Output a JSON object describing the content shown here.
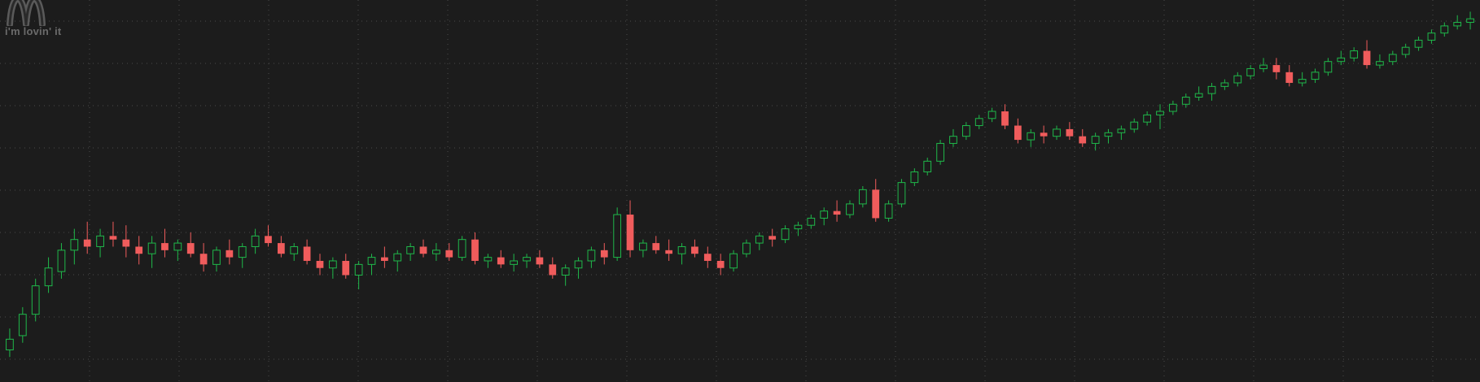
{
  "logo": {
    "tagline": "i'm lovin' it",
    "icon": "golden-arches-icon"
  },
  "colors": {
    "background": "#1c1c1c",
    "grid": "#4a4a4a",
    "up": "#1fb84a",
    "down": "#f05c5c",
    "logo": "#5a5a5a"
  },
  "chart_data": {
    "type": "candlestick",
    "title": "",
    "xlabel": "",
    "ylabel": "",
    "grid": true,
    "ylim": [
      0,
      100
    ],
    "series": [
      {
        "values": [
          [
            4,
            10,
            2,
            7
          ],
          [
            8,
            16,
            6,
            14
          ],
          [
            14,
            24,
            12,
            22
          ],
          [
            22,
            30,
            20,
            27
          ],
          [
            26,
            34,
            24,
            32
          ],
          [
            32,
            38,
            28,
            35
          ],
          [
            35,
            40,
            31,
            33
          ],
          [
            33,
            38,
            30,
            36
          ],
          [
            36,
            40,
            33,
            35
          ],
          [
            35,
            39,
            30,
            33
          ],
          [
            33,
            36,
            28,
            31
          ],
          [
            31,
            36,
            27,
            34
          ],
          [
            34,
            38,
            30,
            32
          ],
          [
            32,
            35,
            29,
            34
          ],
          [
            34,
            37,
            30,
            31
          ],
          [
            31,
            34,
            26,
            28
          ],
          [
            28,
            33,
            26,
            32
          ],
          [
            32,
            35,
            28,
            30
          ],
          [
            30,
            34,
            27,
            33
          ],
          [
            33,
            38,
            31,
            36
          ],
          [
            36,
            39,
            33,
            34
          ],
          [
            34,
            36,
            30,
            31
          ],
          [
            31,
            34,
            29,
            33
          ],
          [
            33,
            35,
            28,
            29
          ],
          [
            29,
            31,
            25,
            27
          ],
          [
            27,
            30,
            24,
            29
          ],
          [
            29,
            31,
            24,
            25
          ],
          [
            25,
            29,
            21,
            28
          ],
          [
            28,
            31,
            25,
            30
          ],
          [
            30,
            33,
            27,
            29
          ],
          [
            29,
            32,
            26,
            31
          ],
          [
            31,
            34,
            29,
            33
          ],
          [
            33,
            35,
            30,
            31
          ],
          [
            31,
            34,
            29,
            32
          ],
          [
            32,
            34,
            29,
            30
          ],
          [
            30,
            36,
            29,
            35
          ],
          [
            35,
            37,
            28,
            29
          ],
          [
            29,
            31,
            27,
            30
          ],
          [
            30,
            32,
            27,
            28
          ],
          [
            28,
            31,
            26,
            29
          ],
          [
            29,
            31,
            27,
            30
          ],
          [
            30,
            32,
            27,
            28
          ],
          [
            28,
            30,
            24,
            25
          ],
          [
            25,
            28,
            22,
            27
          ],
          [
            27,
            30,
            24,
            29
          ],
          [
            29,
            33,
            27,
            32
          ],
          [
            32,
            34,
            28,
            30
          ],
          [
            30,
            44,
            29,
            42
          ],
          [
            42,
            46,
            30,
            32
          ],
          [
            32,
            35,
            30,
            34
          ],
          [
            34,
            36,
            31,
            32
          ],
          [
            32,
            35,
            29,
            31
          ],
          [
            31,
            34,
            28,
            33
          ],
          [
            33,
            35,
            30,
            31
          ],
          [
            31,
            33,
            27,
            29
          ],
          [
            29,
            31,
            25,
            27
          ],
          [
            27,
            32,
            26,
            31
          ],
          [
            31,
            35,
            30,
            34
          ],
          [
            34,
            37,
            32,
            36
          ],
          [
            36,
            38,
            33,
            35
          ],
          [
            35,
            39,
            34,
            38
          ],
          [
            38,
            40,
            36,
            39
          ],
          [
            39,
            42,
            38,
            41
          ],
          [
            41,
            44,
            39,
            43
          ],
          [
            43,
            46,
            40,
            42
          ],
          [
            42,
            46,
            41,
            45
          ],
          [
            45,
            50,
            44,
            49
          ],
          [
            49,
            52,
            40,
            41
          ],
          [
            41,
            46,
            40,
            45
          ],
          [
            45,
            52,
            44,
            51
          ],
          [
            51,
            55,
            50,
            54
          ],
          [
            54,
            58,
            53,
            57
          ],
          [
            57,
            63,
            56,
            62
          ],
          [
            62,
            66,
            61,
            64
          ],
          [
            64,
            68,
            63,
            67
          ],
          [
            67,
            70,
            66,
            69
          ],
          [
            69,
            72,
            68,
            71
          ],
          [
            71,
            73,
            66,
            67
          ],
          [
            67,
            69,
            62,
            63
          ],
          [
            63,
            66,
            61,
            65
          ],
          [
            65,
            67,
            62,
            64
          ],
          [
            64,
            67,
            63,
            66
          ],
          [
            66,
            68,
            63,
            64
          ],
          [
            64,
            66,
            61,
            62
          ],
          [
            62,
            65,
            60,
            64
          ],
          [
            64,
            66,
            62,
            65
          ],
          [
            65,
            67,
            63,
            66
          ],
          [
            66,
            69,
            65,
            68
          ],
          [
            68,
            71,
            67,
            70
          ],
          [
            70,
            73,
            66,
            71
          ],
          [
            71,
            74,
            70,
            73
          ],
          [
            73,
            76,
            72,
            75
          ],
          [
            75,
            78,
            74,
            76
          ],
          [
            76,
            79,
            74,
            78
          ],
          [
            78,
            80,
            77,
            79
          ],
          [
            79,
            82,
            78,
            81
          ],
          [
            81,
            84,
            80,
            83
          ],
          [
            83,
            86,
            82,
            84
          ],
          [
            84,
            86,
            80,
            82
          ],
          [
            82,
            84,
            78,
            79
          ],
          [
            79,
            82,
            78,
            80
          ],
          [
            80,
            83,
            79,
            82
          ],
          [
            82,
            86,
            81,
            85
          ],
          [
            85,
            88,
            84,
            86
          ],
          [
            86,
            89,
            85,
            88
          ],
          [
            88,
            91,
            83,
            84
          ],
          [
            84,
            87,
            83,
            85
          ],
          [
            85,
            88,
            84,
            87
          ],
          [
            87,
            90,
            86,
            89
          ],
          [
            89,
            92,
            88,
            91
          ],
          [
            91,
            94,
            90,
            93
          ],
          [
            93,
            96,
            92,
            95
          ],
          [
            95,
            98,
            94,
            96
          ],
          [
            96,
            99,
            94,
            97
          ]
        ]
      }
    ]
  }
}
